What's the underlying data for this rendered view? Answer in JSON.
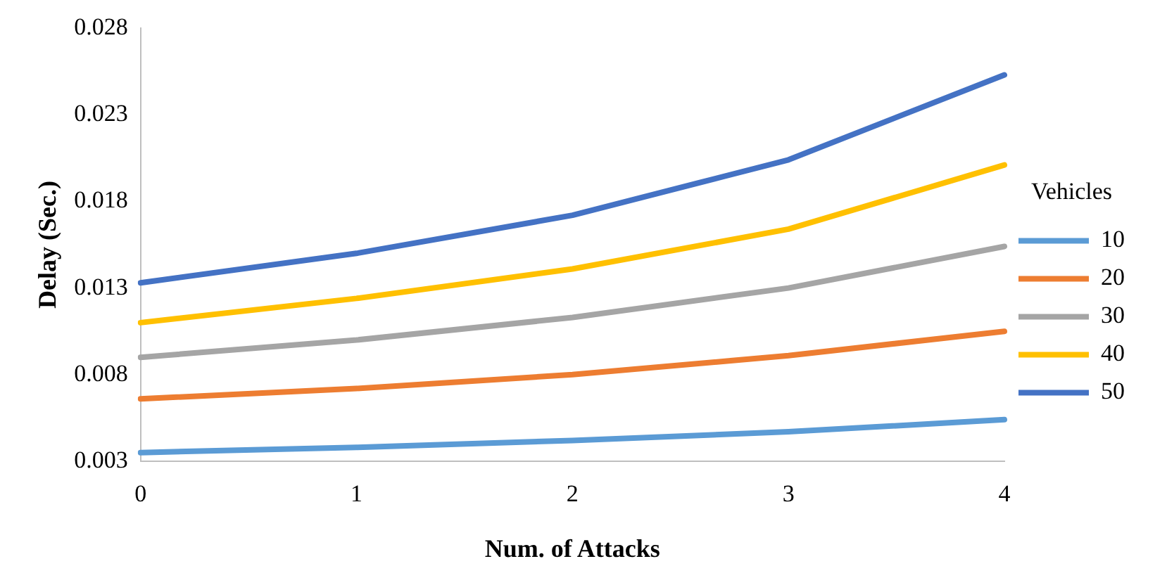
{
  "chart_data": {
    "type": "line",
    "xlabel": "Num. of Attacks",
    "ylabel": "Delay (Sec.)",
    "legend_title": "Vehicles",
    "legend": "right",
    "grid": false,
    "marker": "none",
    "line_style": "solid",
    "categories": [
      "0",
      "1",
      "2",
      "3",
      "4"
    ],
    "ylim": [
      0.003,
      0.028
    ],
    "yticks": [
      0.003,
      0.008,
      0.013,
      0.018,
      0.023,
      0.028
    ],
    "series": [
      {
        "name": "10",
        "color": "#5b9bd5",
        "values": [
          0.0035,
          0.0038,
          0.0042,
          0.0047,
          0.0054
        ]
      },
      {
        "name": "20",
        "color": "#ed7d31",
        "values": [
          0.0066,
          0.0072,
          0.008,
          0.0091,
          0.0105
        ]
      },
      {
        "name": "30",
        "color": "#a5a5a5",
        "values": [
          0.009,
          0.01,
          0.0113,
          0.013,
          0.0154
        ]
      },
      {
        "name": "40",
        "color": "#ffc000",
        "values": [
          0.011,
          0.0124,
          0.0141,
          0.0164,
          0.0201
        ]
      },
      {
        "name": "50",
        "color": "#4472c4",
        "values": [
          0.0133,
          0.015,
          0.0172,
          0.0204,
          0.0253
        ]
      }
    ]
  }
}
